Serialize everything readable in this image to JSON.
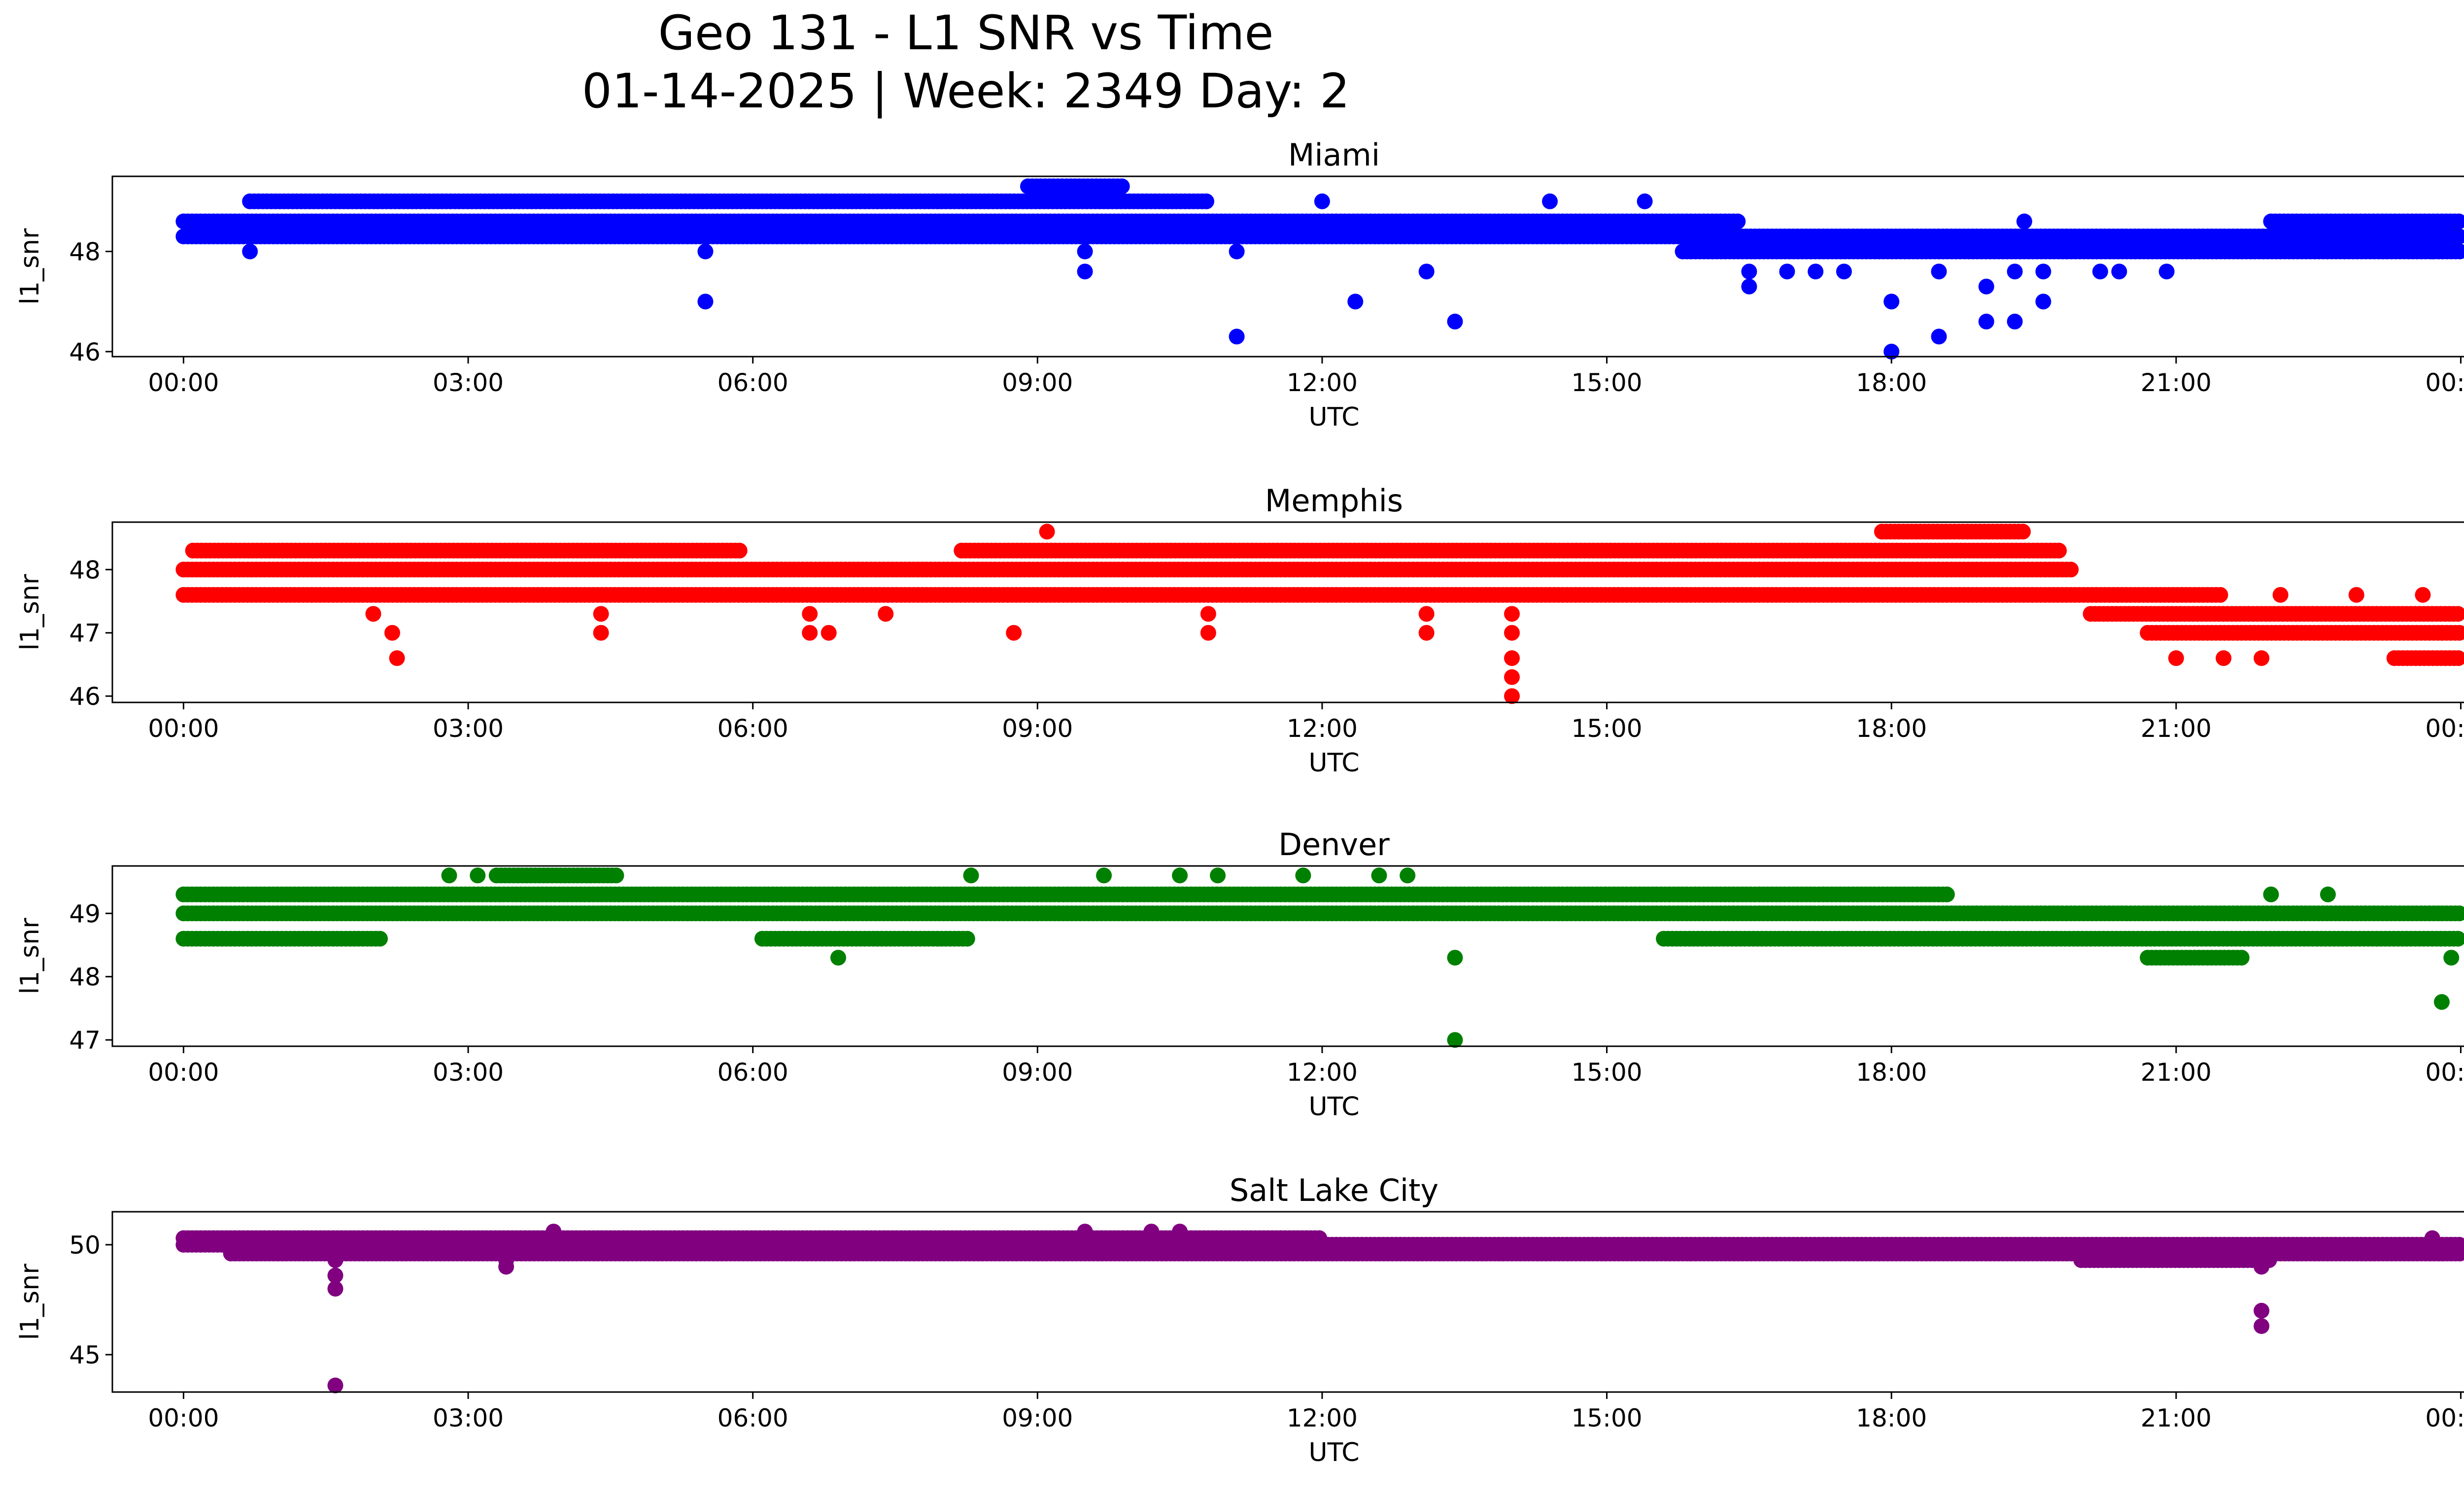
{
  "figure": {
    "title_line1": "Geo 131 - L1 SNR vs Time",
    "title_line2": "01-14-2025 | Week: 2349 Day: 2"
  },
  "chart_data": [
    {
      "type": "scatter",
      "title": "Miami",
      "xlabel": "UTC",
      "ylabel": "l1_snr",
      "color": "#0000ff",
      "xlim": [
        -0.75,
        25.0
      ],
      "ylim": [
        45.9,
        49.5
      ],
      "yticks": [
        46,
        48
      ],
      "ytick_labels": [
        "46",
        "48"
      ],
      "xtick_labels": [
        "00:00",
        "03:00",
        "06:00",
        "09:00",
        "12:00",
        "15:00",
        "18:00",
        "21:00",
        "00:00"
      ],
      "bands": [
        {
          "y": 48.3,
          "x0": 0.0,
          "x1": 24.0
        },
        {
          "y": 48.6,
          "x0": 0.0,
          "x1": 16.4
        },
        {
          "y": 48.6,
          "x0": 22.0,
          "x1": 24.0
        },
        {
          "y": 49.0,
          "x0": 0.7,
          "x1": 10.8
        },
        {
          "y": 48.0,
          "x0": 15.8,
          "x1": 24.0
        },
        {
          "y": 49.3,
          "x0": 8.9,
          "x1": 9.9
        }
      ],
      "points": [
        [
          0.7,
          48.0
        ],
        [
          5.5,
          47.0
        ],
        [
          5.5,
          48.0
        ],
        [
          9.5,
          47.6
        ],
        [
          9.5,
          48.0
        ],
        [
          9.5,
          48.3
        ],
        [
          11.1,
          46.3
        ],
        [
          11.1,
          48.0
        ],
        [
          12.0,
          49.0
        ],
        [
          12.35,
          47.0
        ],
        [
          13.1,
          47.6
        ],
        [
          13.4,
          46.6
        ],
        [
          14.4,
          49.0
        ],
        [
          15.4,
          49.0
        ],
        [
          16.5,
          47.3
        ],
        [
          16.5,
          47.6
        ],
        [
          16.9,
          47.6
        ],
        [
          17.2,
          47.6
        ],
        [
          17.5,
          47.6
        ],
        [
          18.0,
          46.0
        ],
        [
          18.0,
          47.0
        ],
        [
          18.5,
          46.3
        ],
        [
          18.5,
          47.6
        ],
        [
          19.0,
          46.6
        ],
        [
          19.0,
          47.3
        ],
        [
          19.3,
          46.6
        ],
        [
          19.3,
          47.6
        ],
        [
          19.6,
          47.0
        ],
        [
          19.6,
          47.6
        ],
        [
          20.2,
          47.6
        ],
        [
          20.4,
          47.6
        ],
        [
          20.9,
          47.6
        ],
        [
          19.4,
          48.6
        ],
        [
          23.7,
          48.0
        ]
      ]
    },
    {
      "type": "scatter",
      "title": "Memphis",
      "xlabel": "UTC",
      "ylabel": "l1_snr",
      "color": "#ff0000",
      "xlim": [
        -0.75,
        25.0
      ],
      "ylim": [
        45.9,
        48.75
      ],
      "yticks": [
        46,
        47,
        48
      ],
      "ytick_labels": [
        "46",
        "47",
        "48"
      ],
      "xtick_labels": [
        "00:00",
        "03:00",
        "06:00",
        "09:00",
        "12:00",
        "15:00",
        "18:00",
        "21:00",
        "00:00"
      ],
      "bands": [
        {
          "y": 48.3,
          "x0": 0.1,
          "x1": 5.9
        },
        {
          "y": 48.3,
          "x0": 8.2,
          "x1": 19.8
        },
        {
          "y": 48.0,
          "x0": 0.0,
          "x1": 19.9
        },
        {
          "y": 47.6,
          "x0": 0.0,
          "x1": 21.5
        },
        {
          "y": 47.3,
          "x0": 20.1,
          "x1": 24.0
        },
        {
          "y": 47.0,
          "x0": 20.7,
          "x1": 24.0
        },
        {
          "y": 46.6,
          "x0": 23.3,
          "x1": 24.0
        },
        {
          "y": 48.6,
          "x0": 17.9,
          "x1": 19.4
        }
      ],
      "points": [
        [
          2.2,
          47.0
        ],
        [
          2.25,
          46.6
        ],
        [
          2.0,
          47.3
        ],
        [
          4.4,
          47.0
        ],
        [
          4.4,
          47.3
        ],
        [
          6.6,
          47.0
        ],
        [
          6.8,
          47.0
        ],
        [
          6.6,
          47.3
        ],
        [
          7.4,
          47.3
        ],
        [
          8.75,
          47.0
        ],
        [
          9.1,
          48.6
        ],
        [
          10.8,
          47.0
        ],
        [
          10.8,
          47.3
        ],
        [
          13.1,
          47.0
        ],
        [
          13.1,
          47.3
        ],
        [
          14.0,
          46.0
        ],
        [
          14.0,
          46.3
        ],
        [
          14.0,
          46.6
        ],
        [
          14.0,
          47.0
        ],
        [
          14.0,
          47.3
        ],
        [
          21.0,
          46.6
        ],
        [
          21.5,
          46.6
        ],
        [
          21.9,
          46.6
        ],
        [
          22.1,
          47.6
        ],
        [
          22.9,
          47.6
        ],
        [
          23.6,
          47.6
        ]
      ]
    },
    {
      "type": "scatter",
      "title": "Denver",
      "xlabel": "UTC",
      "ylabel": "l1_snr",
      "color": "#008000",
      "xlim": [
        -0.75,
        25.0
      ],
      "ylim": [
        46.9,
        49.75
      ],
      "yticks": [
        47,
        48,
        49
      ],
      "ytick_labels": [
        "47",
        "48",
        "49"
      ],
      "xtick_labels": [
        "00:00",
        "03:00",
        "06:00",
        "09:00",
        "12:00",
        "15:00",
        "18:00",
        "21:00",
        "00:00"
      ],
      "bands": [
        {
          "y": 49.0,
          "x0": 0.0,
          "x1": 24.0
        },
        {
          "y": 49.3,
          "x0": 0.0,
          "x1": 18.6
        },
        {
          "y": 48.6,
          "x0": 0.0,
          "x1": 2.1
        },
        {
          "y": 48.6,
          "x0": 6.1,
          "x1": 8.3
        },
        {
          "y": 48.6,
          "x0": 15.6,
          "x1": 24.0
        },
        {
          "y": 48.3,
          "x0": 20.7,
          "x1": 21.7
        },
        {
          "y": 49.6,
          "x0": 3.3,
          "x1": 4.6
        }
      ],
      "points": [
        [
          6.9,
          48.3
        ],
        [
          13.4,
          48.3
        ],
        [
          13.4,
          47.0
        ],
        [
          2.8,
          49.6
        ],
        [
          3.1,
          49.6
        ],
        [
          8.3,
          49.6
        ],
        [
          9.7,
          49.6
        ],
        [
          10.5,
          49.6
        ],
        [
          10.9,
          49.6
        ],
        [
          11.8,
          49.6
        ],
        [
          12.6,
          49.6
        ],
        [
          12.9,
          49.6
        ],
        [
          22.0,
          49.3
        ],
        [
          22.6,
          49.3
        ],
        [
          23.8,
          47.6
        ],
        [
          23.9,
          48.3
        ]
      ]
    },
    {
      "type": "scatter",
      "title": "Salt Lake City",
      "xlabel": "UTC",
      "ylabel": "l1_snr",
      "color": "#800080",
      "xlim": [
        -0.75,
        25.0
      ],
      "ylim": [
        43.3,
        51.5
      ],
      "yticks": [
        45,
        50
      ],
      "ytick_labels": [
        "45",
        "50"
      ],
      "xtick_labels": [
        "00:00",
        "03:00",
        "06:00",
        "09:00",
        "12:00",
        "15:00",
        "18:00",
        "21:00",
        "00:00"
      ],
      "bands": [
        {
          "y": 50.0,
          "x0": 0.0,
          "x1": 24.0
        },
        {
          "y": 49.6,
          "x0": 0.5,
          "x1": 24.0
        },
        {
          "y": 50.3,
          "x0": 0.0,
          "x1": 12.0
        },
        {
          "y": 49.3,
          "x0": 20.0,
          "x1": 22.0
        }
      ],
      "points": [
        [
          1.6,
          43.6
        ],
        [
          1.6,
          48.0
        ],
        [
          1.6,
          48.6
        ],
        [
          1.6,
          49.3
        ],
        [
          3.4,
          49.0
        ],
        [
          3.4,
          49.3
        ],
        [
          3.9,
          50.6
        ],
        [
          9.5,
          50.6
        ],
        [
          10.2,
          50.6
        ],
        [
          10.5,
          50.6
        ],
        [
          21.9,
          46.3
        ],
        [
          21.9,
          47.0
        ],
        [
          21.9,
          49.0
        ],
        [
          23.7,
          50.3
        ]
      ]
    }
  ]
}
